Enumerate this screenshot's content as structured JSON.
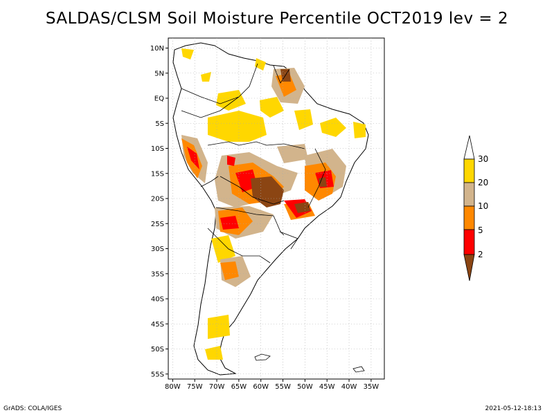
{
  "title": "SALDAS/CLSM Soil Moisture Percentile OCT2019 lev = 2",
  "map": {
    "region": "South America",
    "lat_labels": [
      "10N",
      "5N",
      "EQ",
      "5S",
      "10S",
      "15S",
      "20S",
      "25S",
      "30S",
      "35S",
      "40S",
      "45S",
      "50S",
      "55S"
    ],
    "lon_labels": [
      "80W",
      "75W",
      "70W",
      "65W",
      "60W",
      "55W",
      "50W",
      "45W",
      "40W",
      "35W"
    ],
    "lat_range": [
      -56,
      12
    ],
    "lon_range": [
      -81,
      -32
    ],
    "grid": true
  },
  "legend": {
    "type": "colorbar",
    "placement": "right",
    "levels": [
      "2",
      "5",
      "10",
      "20",
      "30"
    ],
    "colors": {
      "below_2": "#8b4513",
      "2_5": "#ff0000",
      "5_10": "#ff8800",
      "10_20": "#d2b48c",
      "20_30": "#ffd700",
      "above_30": "#ffffff"
    }
  },
  "footer": {
    "left": "GrADS: COLA/IGES",
    "right": "2021-05-12-18:13"
  }
}
